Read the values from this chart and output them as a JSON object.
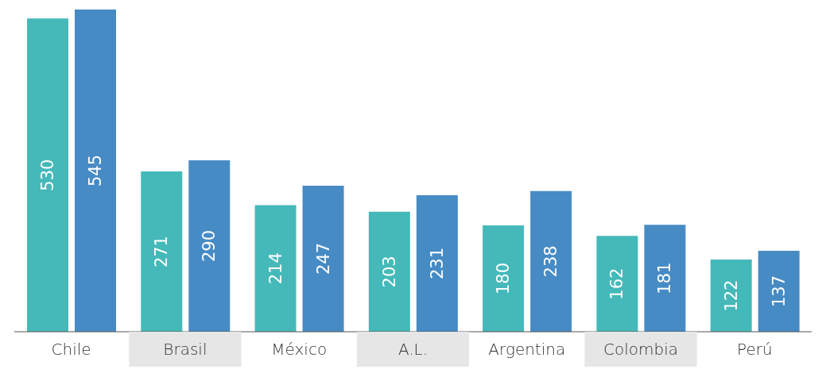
{
  "chart_data": {
    "type": "bar",
    "categories": [
      "Chile",
      "Brasil",
      "México",
      "A.L.",
      "Argentina",
      "Colombia",
      "Perú"
    ],
    "series": [
      {
        "color": "#45b9b9",
        "values": [
          530,
          271,
          214,
          203,
          180,
          162,
          122
        ]
      },
      {
        "color": "#478bc5",
        "values": [
          545,
          290,
          247,
          231,
          238,
          181,
          137
        ]
      }
    ],
    "data_labels": true
  }
}
